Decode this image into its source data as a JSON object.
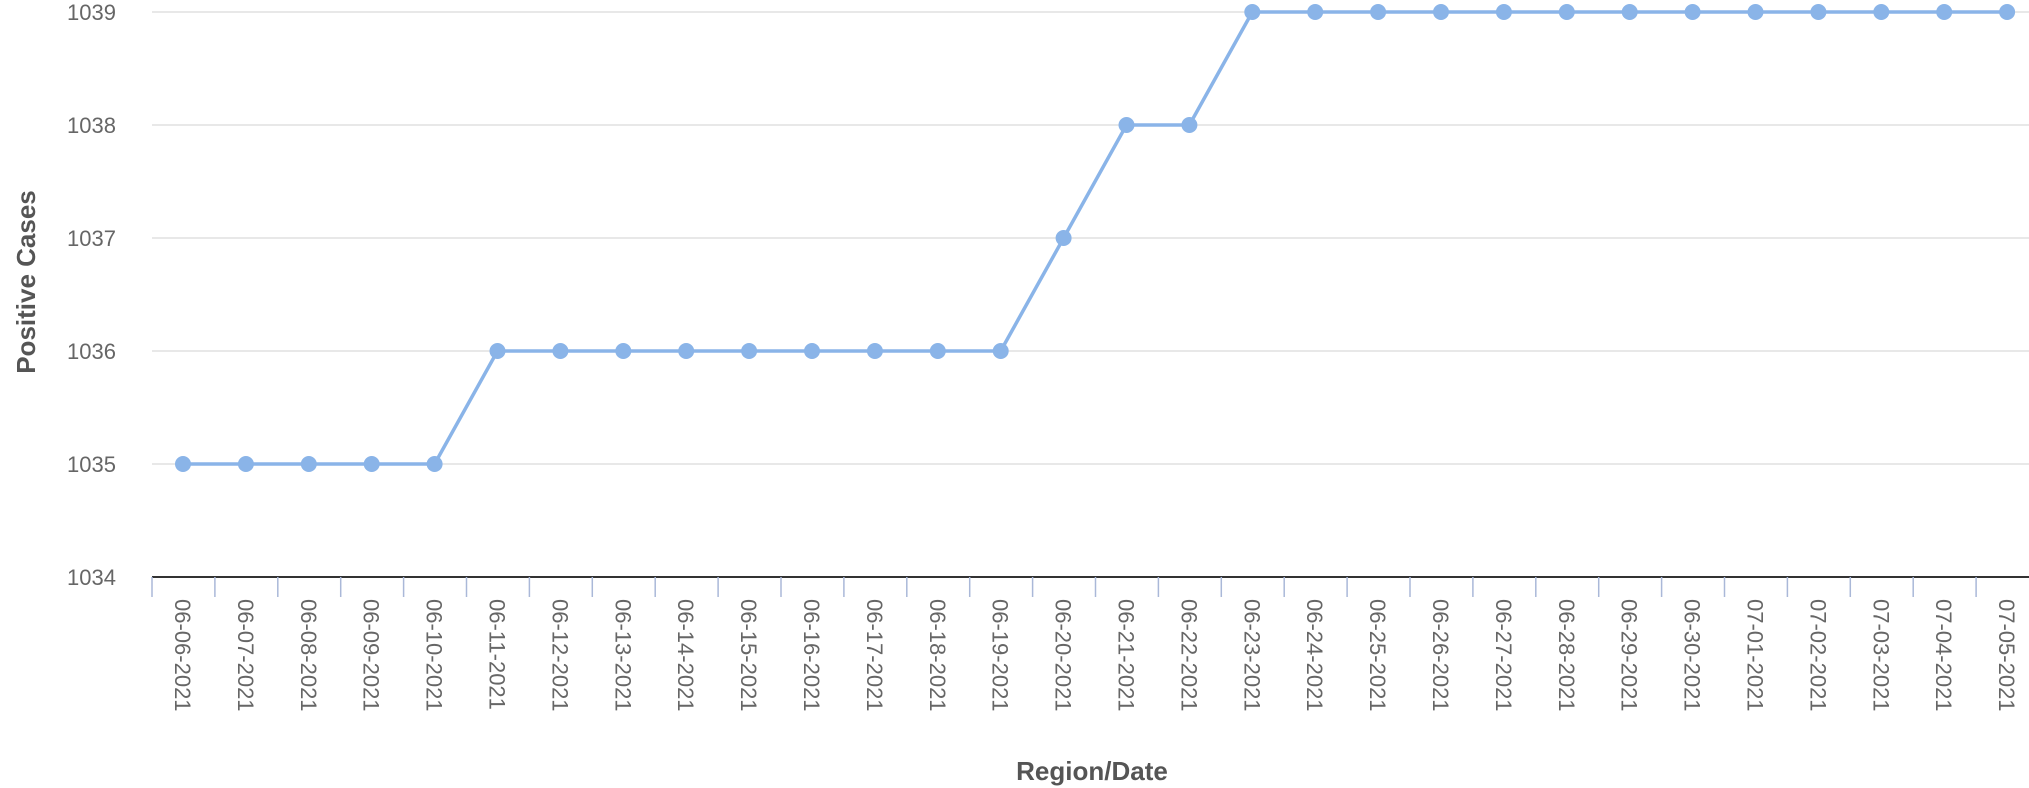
{
  "chart_data": {
    "type": "line",
    "xlabel": "Region/Date",
    "ylabel": "Positive Cases",
    "ylim": [
      1034,
      1039
    ],
    "yticks": [
      1034,
      1035,
      1036,
      1037,
      1038,
      1039
    ],
    "grid": true,
    "categories": [
      "06-06-2021",
      "06-07-2021",
      "06-08-2021",
      "06-09-2021",
      "06-10-2021",
      "06-11-2021",
      "06-12-2021",
      "06-13-2021",
      "06-14-2021",
      "06-15-2021",
      "06-16-2021",
      "06-17-2021",
      "06-18-2021",
      "06-19-2021",
      "06-20-2021",
      "06-21-2021",
      "06-22-2021",
      "06-23-2021",
      "06-24-2021",
      "06-25-2021",
      "06-26-2021",
      "06-27-2021",
      "06-28-2021",
      "06-29-2021",
      "06-30-2021",
      "07-01-2021",
      "07-02-2021",
      "07-03-2021",
      "07-04-2021",
      "07-05-2021"
    ],
    "series": [
      {
        "values": [
          1035,
          1035,
          1035,
          1035,
          1035,
          1036,
          1036,
          1036,
          1036,
          1036,
          1036,
          1036,
          1036,
          1036,
          1037,
          1038,
          1038,
          1039,
          1039,
          1039,
          1039,
          1039,
          1039,
          1039,
          1039,
          1039,
          1039,
          1039,
          1039,
          1039
        ],
        "color": "#8ab4e8"
      }
    ]
  }
}
